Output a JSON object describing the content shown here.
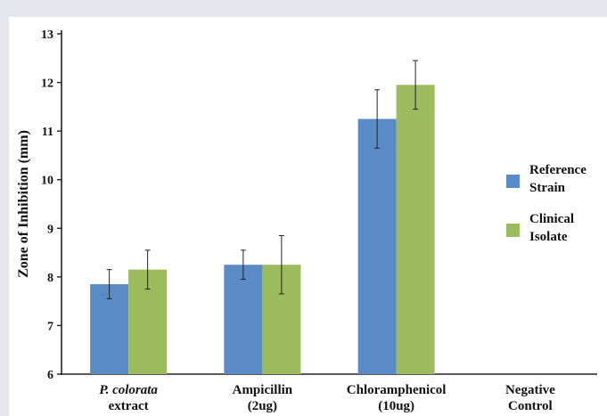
{
  "chart_data": {
    "type": "bar",
    "title": "",
    "xlabel": "",
    "ylabel": "Zone of Inhibition (mm)",
    "ylim": [
      6,
      13
    ],
    "yticks": [
      6,
      7,
      8,
      9,
      10,
      11,
      12,
      13
    ],
    "categories": [
      [
        "P. colorata",
        "extract"
      ],
      [
        "Ampicillin",
        "(2ug)"
      ],
      [
        "Chloramphenicol",
        "(10ug)"
      ],
      [
        "Negative",
        "Control"
      ]
    ],
    "category_italic_first_line": [
      true,
      false,
      false,
      false
    ],
    "series": [
      {
        "name": [
          "Reference",
          "Strain"
        ],
        "color": "#5b8bc6",
        "values": [
          7.85,
          8.25,
          11.25,
          null
        ],
        "errors": [
          0.3,
          0.3,
          0.6,
          null
        ]
      },
      {
        "name": [
          "Clinical",
          "Isolate"
        ],
        "color": "#9bbb5c",
        "values": [
          8.15,
          8.25,
          11.95,
          null
        ],
        "errors": [
          0.4,
          0.6,
          0.5,
          null
        ]
      }
    ],
    "grid": false,
    "error_bars": true,
    "legend_position": "right"
  }
}
